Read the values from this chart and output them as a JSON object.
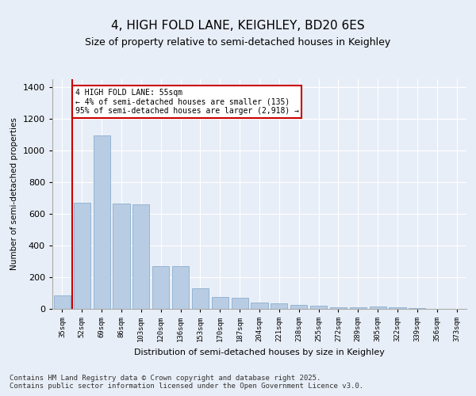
{
  "title": "4, HIGH FOLD LANE, KEIGHLEY, BD20 6ES",
  "subtitle": "Size of property relative to semi-detached houses in Keighley",
  "xlabel": "Distribution of semi-detached houses by size in Keighley",
  "ylabel": "Number of semi-detached properties",
  "categories": [
    "35sqm",
    "52sqm",
    "69sqm",
    "86sqm",
    "103sqm",
    "120sqm",
    "136sqm",
    "153sqm",
    "170sqm",
    "187sqm",
    "204sqm",
    "221sqm",
    "238sqm",
    "255sqm",
    "272sqm",
    "289sqm",
    "305sqm",
    "322sqm",
    "339sqm",
    "356sqm",
    "373sqm"
  ],
  "values": [
    85,
    670,
    1095,
    665,
    660,
    270,
    270,
    130,
    75,
    70,
    40,
    35,
    25,
    20,
    10,
    10,
    15,
    10,
    5,
    2,
    2
  ],
  "bar_color": "#b8cce4",
  "bar_edge_color": "#7da6c8",
  "highlight_bar_index": 1,
  "highlight_line_color": "#cc0000",
  "annotation_text": "4 HIGH FOLD LANE: 55sqm\n← 4% of semi-detached houses are smaller (135)\n95% of semi-detached houses are larger (2,918) →",
  "annotation_box_color": "#cc0000",
  "footer_text": "Contains HM Land Registry data © Crown copyright and database right 2025.\nContains public sector information licensed under the Open Government Licence v3.0.",
  "ylim": [
    0,
    1450
  ],
  "yticks": [
    0,
    200,
    400,
    600,
    800,
    1000,
    1200,
    1400
  ],
  "background_color": "#e8eef7",
  "grid_color": "#ffffff",
  "title_fontsize": 11,
  "footer_fontsize": 6.5
}
